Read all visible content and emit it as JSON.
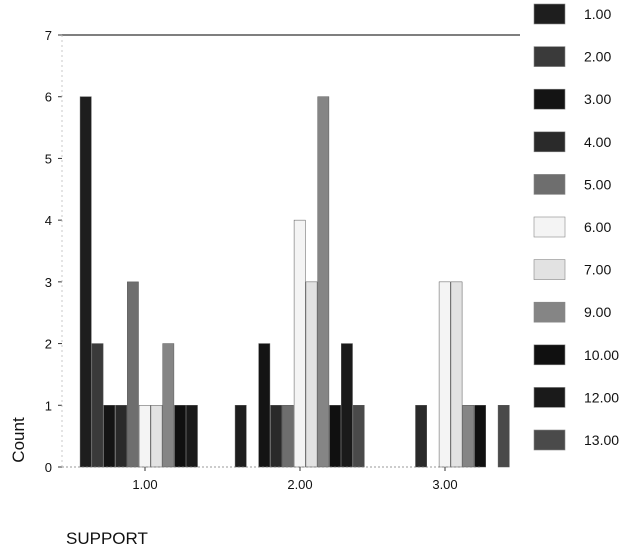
{
  "chart_data": {
    "type": "bar",
    "xlabel": "SUPPORT",
    "ylabel": "Count",
    "ylim": [
      0,
      7
    ],
    "y_ticks": [
      "0",
      "1",
      "2",
      "3",
      "4",
      "5",
      "6",
      "7"
    ],
    "categories": [
      "1.00",
      "2.00",
      "3.00"
    ],
    "legend_position": "right",
    "series": [
      {
        "name": "1.00",
        "color": "#1e1e1e",
        "values": [
          6,
          1,
          0
        ]
      },
      {
        "name": "2.00",
        "color": "#3a3a3a",
        "values": [
          2,
          0,
          0
        ]
      },
      {
        "name": "3.00",
        "color": "#141414",
        "values": [
          1,
          2,
          0
        ]
      },
      {
        "name": "4.00",
        "color": "#2a2a2a",
        "values": [
          1,
          1,
          1
        ]
      },
      {
        "name": "5.00",
        "color": "#6e6e6e",
        "values": [
          3,
          1,
          0
        ]
      },
      {
        "name": "6.00",
        "color": "#f4f4f4",
        "values": [
          1,
          4,
          3
        ]
      },
      {
        "name": "7.00",
        "color": "#e2e2e2",
        "values": [
          1,
          3,
          3
        ]
      },
      {
        "name": "9.00",
        "color": "#858585",
        "values": [
          2,
          6,
          1
        ]
      },
      {
        "name": "10.00",
        "color": "#101010",
        "values": [
          1,
          1,
          1
        ]
      },
      {
        "name": "12.00",
        "color": "#1a1a1a",
        "values": [
          1,
          2,
          0
        ]
      },
      {
        "name": "13.00",
        "color": "#4a4a4a",
        "values": [
          0,
          1,
          1
        ]
      }
    ]
  }
}
